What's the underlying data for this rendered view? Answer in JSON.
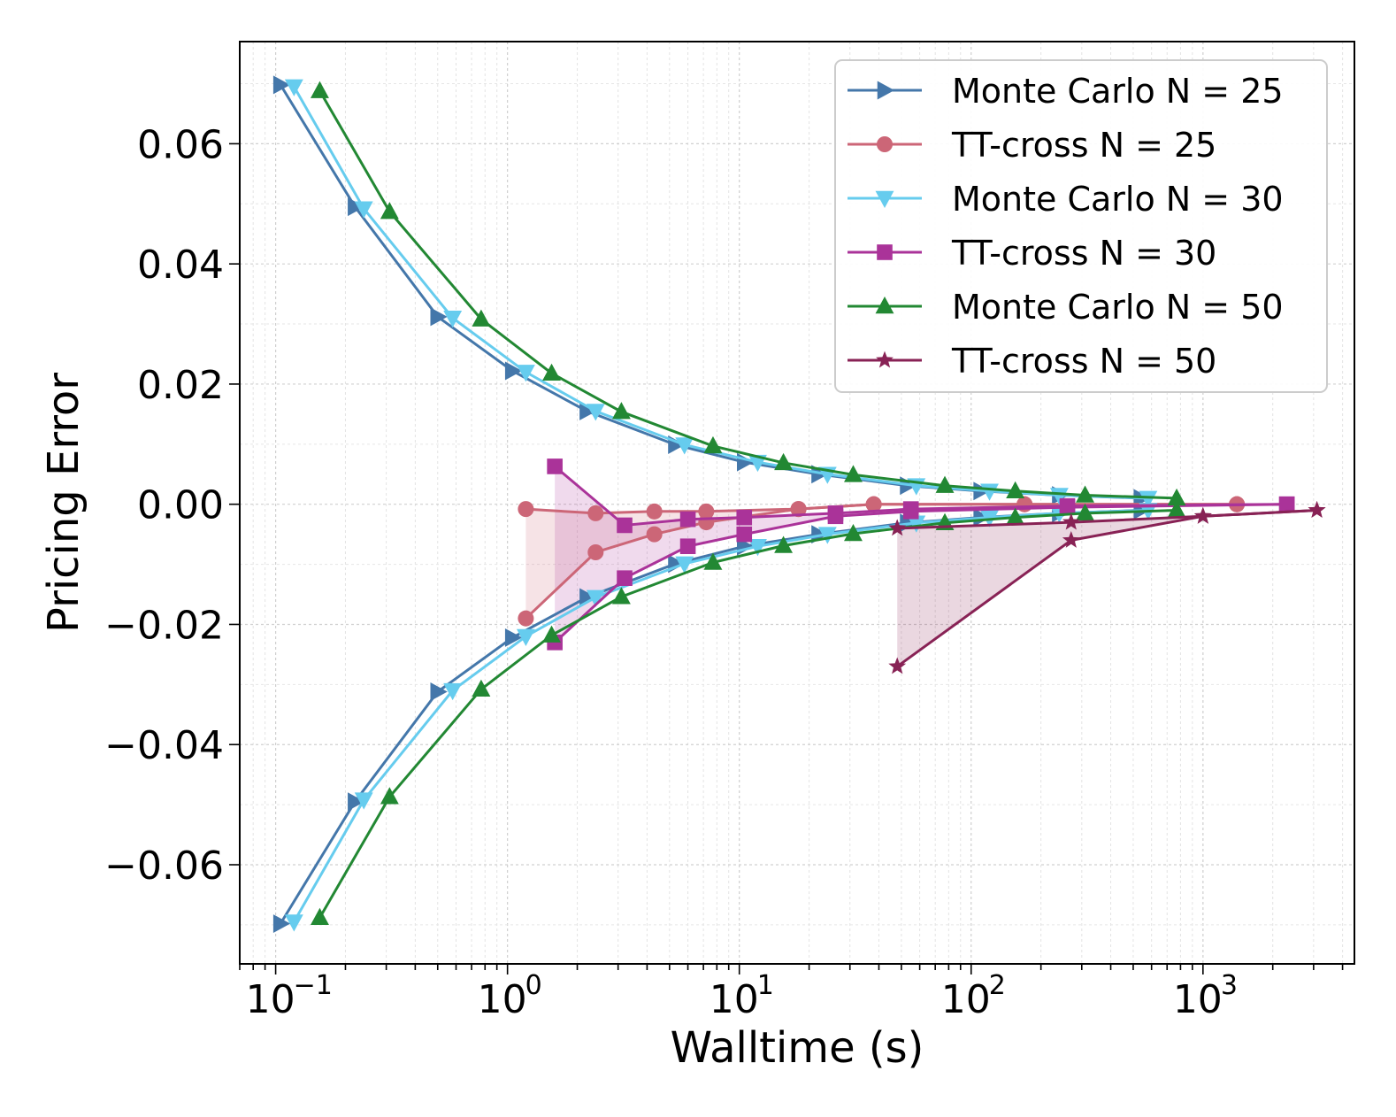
{
  "chart_data": {
    "type": "line",
    "title": "",
    "xlabel": "Walltime (s)",
    "ylabel": "Pricing Error",
    "xscale": "log",
    "xlim": [
      0.07,
      4500
    ],
    "ylim": [
      -0.0765,
      0.077
    ],
    "grid": true,
    "legend_position": "top-right",
    "x_tick_labels": [
      {
        "value": 0.1,
        "base": "10",
        "exp": "−1"
      },
      {
        "value": 1,
        "base": "10",
        "exp": "0"
      },
      {
        "value": 10,
        "base": "10",
        "exp": "1"
      },
      {
        "value": 100,
        "base": "10",
        "exp": "2"
      },
      {
        "value": 1000,
        "base": "10",
        "exp": "3"
      }
    ],
    "y_tick_labels": [
      {
        "value": 0.06,
        "label": "0.06"
      },
      {
        "value": 0.04,
        "label": "0.04"
      },
      {
        "value": 0.02,
        "label": "0.02"
      },
      {
        "value": 0.0,
        "label": "0.00"
      },
      {
        "value": -0.02,
        "label": "−0.02"
      },
      {
        "value": -0.04,
        "label": "−0.04"
      },
      {
        "value": -0.06,
        "label": "−0.06"
      }
    ],
    "series": [
      {
        "name": "Monte Carlo N = 25",
        "color": "#4477aa",
        "marker": "triangle-right",
        "x": [
          0.105,
          0.22,
          0.5,
          1.05,
          2.2,
          5.3,
          10.5,
          22,
          53,
          110,
          240,
          540
        ],
        "upper": [
          0.0698,
          0.0495,
          0.0312,
          0.0222,
          0.0155,
          0.0099,
          0.007,
          0.005,
          0.0031,
          0.0022,
          0.0015,
          0.001
        ],
        "lower": [
          -0.0698,
          -0.0495,
          -0.0312,
          -0.0222,
          -0.0155,
          -0.0099,
          -0.007,
          -0.005,
          -0.0031,
          -0.0022,
          -0.0015,
          -0.001
        ]
      },
      {
        "name": "TT-cross N = 25",
        "color": "#cc6677",
        "marker": "circle",
        "x": [
          1.2,
          2.4,
          4.3,
          7.2,
          18,
          38,
          170,
          1400
        ],
        "upper": [
          -0.0008,
          -0.0015,
          -0.0012,
          -0.0012,
          -0.0008,
          0.0,
          0.0,
          0.0
        ],
        "lower": [
          -0.019,
          -0.008,
          -0.005,
          -0.003,
          -0.0008,
          0.0,
          0.0,
          0.0
        ]
      },
      {
        "name": "Monte Carlo N = 30",
        "color": "#66ccee",
        "marker": "triangle-down",
        "x": [
          0.12,
          0.24,
          0.58,
          1.2,
          2.4,
          5.8,
          12,
          24,
          58,
          120,
          240,
          580
        ],
        "upper": [
          0.0695,
          0.0492,
          0.031,
          0.022,
          0.0155,
          0.0099,
          0.007,
          0.005,
          0.0031,
          0.0022,
          0.0015,
          0.001
        ],
        "lower": [
          -0.0695,
          -0.0492,
          -0.031,
          -0.022,
          -0.0155,
          -0.0099,
          -0.007,
          -0.005,
          -0.0031,
          -0.0022,
          -0.0015,
          -0.001
        ]
      },
      {
        "name": "TT-cross N = 30",
        "color": "#aa3399",
        "marker": "square",
        "x": [
          1.6,
          3.2,
          6.0,
          10.5,
          26,
          55,
          260,
          2300
        ],
        "upper": [
          0.0063,
          -0.0035,
          -0.0025,
          -0.0022,
          -0.0015,
          -0.0008,
          -0.0003,
          0.0
        ],
        "lower": [
          -0.023,
          -0.0123,
          -0.007,
          -0.005,
          -0.002,
          -0.0012,
          -0.0005,
          0.0
        ]
      },
      {
        "name": "Monte Carlo N = 50",
        "color": "#228833",
        "marker": "triangle-up",
        "x": [
          0.155,
          0.31,
          0.77,
          1.55,
          3.1,
          7.7,
          15.5,
          31,
          77,
          155,
          310,
          770
        ],
        "upper": [
          0.0688,
          0.0487,
          0.0308,
          0.0218,
          0.0154,
          0.0097,
          0.0069,
          0.0049,
          0.0031,
          0.0022,
          0.0015,
          0.001
        ],
        "lower": [
          -0.0688,
          -0.0487,
          -0.0308,
          -0.0218,
          -0.0154,
          -0.0097,
          -0.0069,
          -0.0049,
          -0.0031,
          -0.0022,
          -0.0015,
          -0.001
        ]
      },
      {
        "name": "TT-cross N = 50",
        "color": "#882255",
        "marker": "star",
        "x": [
          48,
          270,
          1000,
          3100
        ],
        "upper": [
          -0.004,
          -0.003,
          -0.002,
          -0.001
        ],
        "lower": [
          -0.027,
          -0.006,
          -0.002,
          -0.001
        ]
      }
    ]
  }
}
